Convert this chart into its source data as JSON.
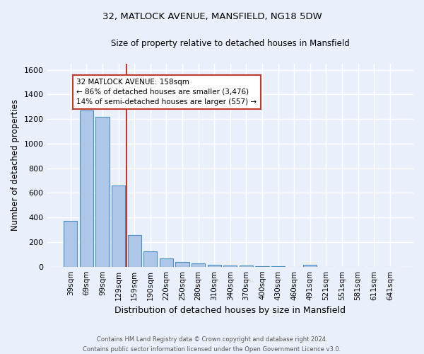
{
  "title": "32, MATLOCK AVENUE, MANSFIELD, NG18 5DW",
  "subtitle": "Size of property relative to detached houses in Mansfield",
  "xlabel": "Distribution of detached houses by size in Mansfield",
  "ylabel": "Number of detached properties",
  "footer_line1": "Contains HM Land Registry data © Crown copyright and database right 2024.",
  "footer_line2": "Contains public sector information licensed under the Open Government Licence v3.0.",
  "categories": [
    "39sqm",
    "69sqm",
    "99sqm",
    "129sqm",
    "159sqm",
    "190sqm",
    "220sqm",
    "250sqm",
    "280sqm",
    "310sqm",
    "340sqm",
    "370sqm",
    "400sqm",
    "430sqm",
    "460sqm",
    "491sqm",
    "521sqm",
    "551sqm",
    "581sqm",
    "611sqm",
    "641sqm"
  ],
  "values": [
    370,
    1270,
    1220,
    660,
    260,
    125,
    70,
    38,
    25,
    15,
    10,
    8,
    6,
    5,
    0,
    18,
    0,
    0,
    0,
    0,
    0
  ],
  "bar_color": "#aec6e8",
  "bar_edge_color": "#4a90c4",
  "background_color": "#eaf0fb",
  "grid_color": "#ffffff",
  "property_line_x": 3.5,
  "property_line_color": "#c0392b",
  "annotation_text": "32 MATLOCK AVENUE: 158sqm\n← 86% of detached houses are smaller (3,476)\n14% of semi-detached houses are larger (557) →",
  "annotation_box_color": "#ffffff",
  "annotation_box_edge_color": "#c0392b",
  "ylim": [
    0,
    1650
  ],
  "yticks": [
    0,
    200,
    400,
    600,
    800,
    1000,
    1200,
    1400,
    1600
  ]
}
